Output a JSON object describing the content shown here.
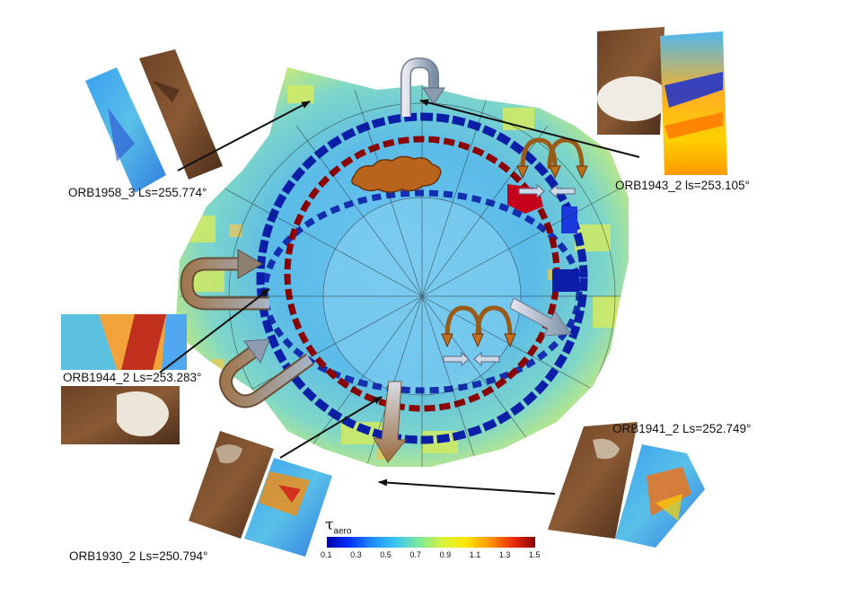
{
  "labels": {
    "orb1958": "ORB1958_3 Ls=255.774°",
    "orb1943": "ORB1943_2 ls=253.105°",
    "orb1944": "ORB1944_2 Ls=253.283°",
    "orb1941": "ORB1941_2 Ls=252.749°",
    "orb1930": "ORB1930_2 Ls=250.794°"
  },
  "colorbar": {
    "symbol": "τ",
    "subscript": "aero",
    "ticks": [
      "0.1",
      "0.3",
      "0.5",
      "0.7",
      "0.9",
      "1.1",
      "1.3",
      "1.5"
    ],
    "colors": [
      "#0000a8",
      "#0033ff",
      "#1f8fff",
      "#3cc8f0",
      "#7fe89a",
      "#d8f23c",
      "#ffe600",
      "#ff9a00",
      "#f03010",
      "#8b0000"
    ]
  }
}
